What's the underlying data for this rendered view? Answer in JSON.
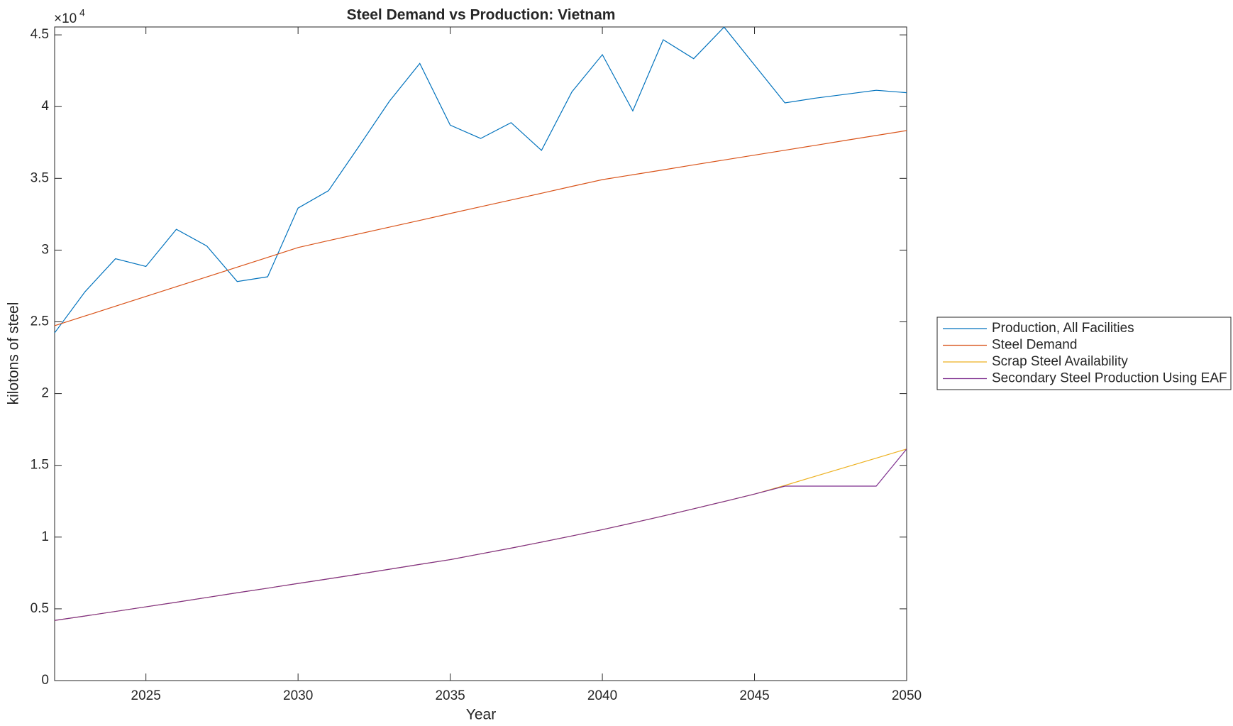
{
  "chart_data": {
    "type": "line",
    "title": "Steel Demand vs Production: Vietnam",
    "xlabel": "Year",
    "ylabel": "kilotons of steel",
    "y_exponent": "×10",
    "y_exponent_power": "4",
    "x": [
      2022,
      2023,
      2024,
      2025,
      2026,
      2027,
      2028,
      2029,
      2030,
      2031,
      2032,
      2033,
      2034,
      2035,
      2036,
      2037,
      2038,
      2039,
      2040,
      2041,
      2042,
      2043,
      2044,
      2045,
      2046,
      2047,
      2048,
      2049,
      2050
    ],
    "xlim": [
      2022,
      2050
    ],
    "xticks": [
      2025,
      2030,
      2035,
      2040,
      2045,
      2050
    ],
    "ylim": [
      0,
      45550
    ],
    "yticks": [
      {
        "value": 0,
        "label": "0"
      },
      {
        "value": 5000,
        "label": "0.5"
      },
      {
        "value": 10000,
        "label": "1"
      },
      {
        "value": 15000,
        "label": "1.5"
      },
      {
        "value": 20000,
        "label": "2"
      },
      {
        "value": 25000,
        "label": "2.5"
      },
      {
        "value": 30000,
        "label": "3"
      },
      {
        "value": 35000,
        "label": "3.5"
      },
      {
        "value": 40000,
        "label": "4"
      },
      {
        "value": 45000,
        "label": "4.5"
      }
    ],
    "legend": "outside-right",
    "series": [
      {
        "name": "Production, All Facilities",
        "color": "#0072BD",
        "values": [
          24230,
          27100,
          29400,
          28860,
          31450,
          30290,
          27810,
          28140,
          32930,
          34140,
          37230,
          40370,
          43010,
          38710,
          37780,
          38880,
          36950,
          41030,
          43620,
          39700,
          44660,
          43340,
          45540,
          42900,
          40260,
          40590,
          40860,
          41140,
          40970
        ]
      },
      {
        "name": "Steel Demand",
        "color": "#D95319",
        "values": [
          24730,
          25410,
          26090,
          26770,
          27450,
          28130,
          28810,
          29490,
          30180,
          30660,
          31130,
          31600,
          32070,
          32550,
          33020,
          33490,
          33960,
          34440,
          34910,
          35250,
          35590,
          35940,
          36280,
          36620,
          36960,
          37300,
          37650,
          37990,
          38330
        ]
      },
      {
        "name": "Scrap Steel Availability",
        "color": "#EDB120",
        "values": [
          4190,
          4500,
          4820,
          5140,
          5460,
          5790,
          6120,
          6440,
          6770,
          7090,
          7420,
          7760,
          8100,
          8430,
          8830,
          9230,
          9650,
          10080,
          10520,
          10990,
          11470,
          11970,
          12480,
          13000,
          13600,
          14240,
          14870,
          15500,
          16140
        ]
      },
      {
        "name": "Secondary Steel Production Using EAF",
        "color": "#7E2F8E",
        "values": [
          4190,
          4500,
          4820,
          5140,
          5460,
          5790,
          6120,
          6440,
          6770,
          7090,
          7420,
          7760,
          8100,
          8430,
          8830,
          9230,
          9650,
          10080,
          10520,
          10990,
          11470,
          11970,
          12480,
          13000,
          13550,
          13550,
          13550,
          13550,
          16140
        ]
      }
    ]
  }
}
